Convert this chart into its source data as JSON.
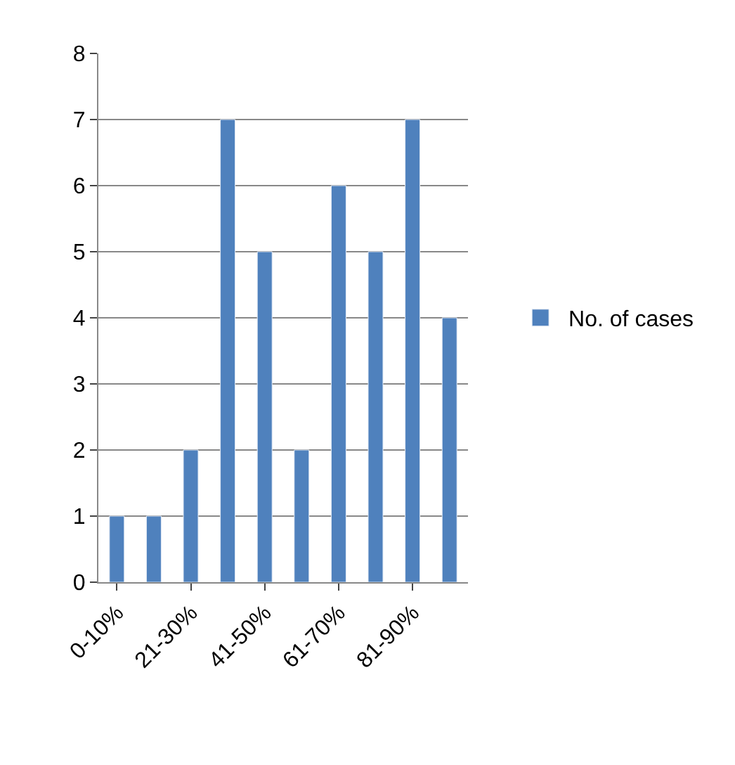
{
  "chart_data": {
    "type": "bar",
    "categories": [
      "0-10%",
      null,
      "21-30%",
      null,
      "41-50%",
      null,
      "61-70%",
      null,
      "81-90%",
      null
    ],
    "series": [
      {
        "name": "No. of cases",
        "color": "#4f81bd",
        "values": [
          1,
          1,
          2,
          7,
          5,
          2,
          6,
          5,
          7,
          4
        ]
      }
    ],
    "ylim": [
      0,
      8
    ],
    "yticks": [
      0,
      1,
      2,
      3,
      4,
      5,
      6,
      7,
      8
    ],
    "grid": "y",
    "legend": "right"
  }
}
